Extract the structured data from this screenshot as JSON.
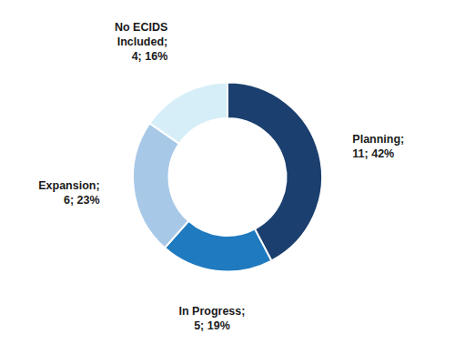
{
  "chart_data": {
    "type": "pie",
    "categories": [
      "Planning;",
      "In Progress;",
      "Expansion;",
      "No ECIDS\nIncluded;"
    ],
    "values": [
      11,
      5,
      6,
      4
    ],
    "value_labels": [
      "11; 42%",
      "5; 19%",
      "6; 23%",
      "4; 16%"
    ],
    "data_labels": true,
    "colors": [
      "#1b3f6e",
      "#1f7abf",
      "#a8c8e8",
      "#d6eef8"
    ]
  }
}
